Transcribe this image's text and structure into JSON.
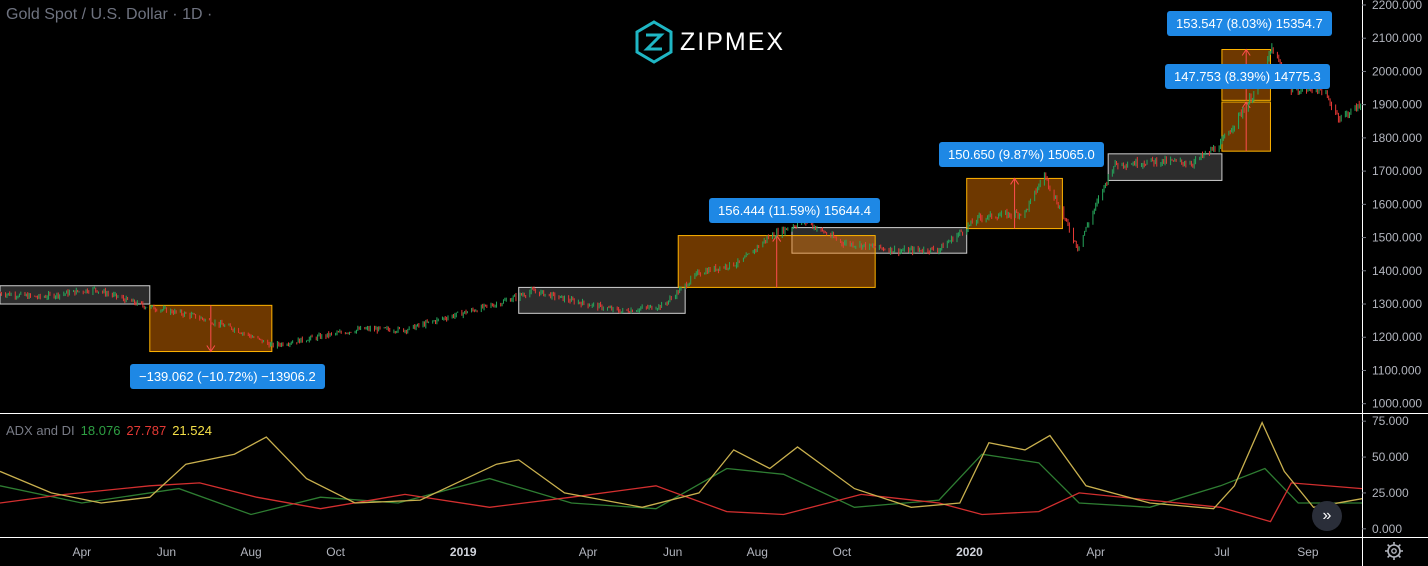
{
  "header": {
    "symbol": "Gold Spot / U.S. Dollar · 1D ·",
    "brand": "ZIPMEX"
  },
  "indicator": {
    "name": "ADX and DI",
    "plus_di": "18.076",
    "minus_di": "27.787",
    "adx": "21.524"
  },
  "callouts": [
    "−139.062 (−10.72%) −13906.2",
    "156.444 (11.59%) 15644.4",
    "150.650 (9.87%) 15065.0",
    "153.547 (8.03%) 15354.7",
    "147.753 (8.39%) 14775.3"
  ],
  "chart_data": {
    "type": "candlestick",
    "instrument": "Gold Spot / U.S. Dollar",
    "interval": "1D",
    "price_axis": {
      "ticks": [
        "1000.000",
        "1100.000",
        "1200.000",
        "1300.000",
        "1400.000",
        "1500.000",
        "1600.000",
        "1700.000",
        "1800.000",
        "1900.000",
        "2000.000",
        "2100.000",
        "2200.000"
      ],
      "range": [
        975,
        2215
      ]
    },
    "time_axis": {
      "ticks": [
        "Apr",
        "Jun",
        "Aug",
        "Oct",
        "2019",
        "Apr",
        "Jun",
        "Aug",
        "Oct",
        "2020",
        "Apr",
        "Jul",
        "Sep"
      ],
      "range": [
        "2018-02-01",
        "2020-10-10"
      ]
    },
    "price_path": [
      [
        "2018-02-01",
        1333
      ],
      [
        "2018-03-01",
        1320
      ],
      [
        "2018-04-10",
        1345
      ],
      [
        "2018-05-15",
        1295
      ],
      [
        "2018-06-20",
        1265
      ],
      [
        "2018-07-20",
        1225
      ],
      [
        "2018-08-16",
        1175
      ],
      [
        "2018-09-15",
        1198
      ],
      [
        "2018-10-20",
        1225
      ],
      [
        "2018-11-20",
        1222
      ],
      [
        "2018-12-20",
        1260
      ],
      [
        "2019-01-25",
        1300
      ],
      [
        "2019-02-20",
        1340
      ],
      [
        "2019-03-20",
        1310
      ],
      [
        "2019-04-25",
        1278
      ],
      [
        "2019-05-25",
        1295
      ],
      [
        "2019-06-20",
        1395
      ],
      [
        "2019-07-20",
        1425
      ],
      [
        "2019-08-10",
        1505
      ],
      [
        "2019-09-04",
        1550
      ],
      [
        "2019-10-01",
        1485
      ],
      [
        "2019-11-12",
        1460
      ],
      [
        "2019-12-10",
        1465
      ],
      [
        "2020-01-08",
        1560
      ],
      [
        "2020-02-10",
        1575
      ],
      [
        "2020-02-24",
        1690
      ],
      [
        "2020-03-19",
        1470
      ],
      [
        "2020-04-14",
        1720
      ],
      [
        "2020-05-15",
        1730
      ],
      [
        "2020-06-10",
        1725
      ],
      [
        "2020-06-30",
        1780
      ],
      [
        "2020-07-28",
        1960
      ],
      [
        "2020-08-06",
        2070
      ],
      [
        "2020-08-20",
        1945
      ],
      [
        "2020-09-10",
        1950
      ],
      [
        "2020-09-24",
        1860
      ],
      [
        "2020-10-10",
        1900
      ]
    ],
    "consolidation_ranges": [
      {
        "start": "2018-02-01",
        "end": "2018-05-20",
        "low": 1300,
        "high": 1355
      },
      {
        "start": "2019-02-10",
        "end": "2019-06-10",
        "low": 1272,
        "high": 1350
      },
      {
        "start": "2019-08-26",
        "end": "2019-12-30",
        "low": 1453,
        "high": 1530
      },
      {
        "start": "2020-04-10",
        "end": "2020-07-01",
        "low": 1672,
        "high": 1752
      }
    ],
    "measured_moves": [
      {
        "start": "2018-05-20",
        "end": "2018-08-16",
        "from": 1296,
        "to": 1157,
        "direction": "down",
        "label": "−139.062 (−10.72%) −13906.2"
      },
      {
        "start": "2019-06-05",
        "end": "2019-10-25",
        "from": 1350,
        "to": 1506,
        "direction": "up",
        "label": "156.444 (11.59%) 15644.4"
      },
      {
        "start": "2019-12-30",
        "end": "2020-03-08",
        "from": 1527,
        "to": 1678,
        "direction": "up",
        "label": "150.650 (9.87%) 15065.0"
      },
      {
        "start": "2020-07-01",
        "end": "2020-08-05",
        "from": 1760,
        "to": 1908,
        "direction": "up",
        "label": "147.753 (8.39%) 14775.3"
      },
      {
        "start": "2020-07-01",
        "end": "2020-08-05",
        "from": 1913,
        "to": 2066,
        "direction": "up",
        "label": "153.547 (8.03%) 15354.7"
      }
    ],
    "indicator_panel": {
      "name": "ADX and DI",
      "ticks": [
        "0.000",
        "25.000",
        "50.000",
        "75.000"
      ],
      "range": [
        -5,
        80
      ],
      "series": [
        {
          "name": "+DI",
          "last": 18.076,
          "color": "#2e7d32",
          "points": [
            [
              "2018-02-01",
              30
            ],
            [
              "2018-04-01",
              18
            ],
            [
              "2018-06-10",
              28
            ],
            [
              "2018-08-01",
              10
            ],
            [
              "2018-09-20",
              22
            ],
            [
              "2018-11-15",
              18
            ],
            [
              "2019-01-20",
              35
            ],
            [
              "2019-03-20",
              18
            ],
            [
              "2019-05-20",
              14
            ],
            [
              "2019-07-10",
              42
            ],
            [
              "2019-08-20",
              38
            ],
            [
              "2019-10-10",
              15
            ],
            [
              "2019-12-10",
              20
            ],
            [
              "2020-01-10",
              52
            ],
            [
              "2020-02-20",
              46
            ],
            [
              "2020-03-20",
              18
            ],
            [
              "2020-05-10",
              15
            ],
            [
              "2020-06-30",
              30
            ],
            [
              "2020-08-01",
              42
            ],
            [
              "2020-08-25",
              18
            ],
            [
              "2020-10-10",
              18
            ]
          ]
        },
        {
          "name": "−DI",
          "last": 27.787,
          "color": "#d32f2f",
          "points": [
            [
              "2018-02-01",
              18
            ],
            [
              "2018-03-20",
              24
            ],
            [
              "2018-05-20",
              30
            ],
            [
              "2018-06-25",
              32
            ],
            [
              "2018-08-05",
              22
            ],
            [
              "2018-09-20",
              14
            ],
            [
              "2018-11-20",
              24
            ],
            [
              "2019-01-20",
              15
            ],
            [
              "2019-03-20",
              22
            ],
            [
              "2019-05-20",
              30
            ],
            [
              "2019-07-10",
              12
            ],
            [
              "2019-08-20",
              10
            ],
            [
              "2019-10-15",
              24
            ],
            [
              "2019-12-10",
              18
            ],
            [
              "2020-01-10",
              10
            ],
            [
              "2020-02-20",
              12
            ],
            [
              "2020-03-20",
              25
            ],
            [
              "2020-05-10",
              20
            ],
            [
              "2020-06-30",
              15
            ],
            [
              "2020-08-05",
              5
            ],
            [
              "2020-08-20",
              32
            ],
            [
              "2020-10-10",
              28
            ]
          ]
        },
        {
          "name": "ADX",
          "last": 21.524,
          "color": "#c9b04e",
          "points": [
            [
              "2018-02-01",
              40
            ],
            [
              "2018-03-10",
              25
            ],
            [
              "2018-04-15",
              18
            ],
            [
              "2018-05-20",
              22
            ],
            [
              "2018-06-15",
              45
            ],
            [
              "2018-07-20",
              52
            ],
            [
              "2018-08-12",
              64
            ],
            [
              "2018-09-10",
              35
            ],
            [
              "2018-10-15",
              18
            ],
            [
              "2018-12-01",
              20
            ],
            [
              "2019-01-25",
              45
            ],
            [
              "2019-02-10",
              48
            ],
            [
              "2019-03-15",
              25
            ],
            [
              "2019-05-10",
              15
            ],
            [
              "2019-06-20",
              25
            ],
            [
              "2019-07-15",
              55
            ],
            [
              "2019-08-10",
              42
            ],
            [
              "2019-08-30",
              57
            ],
            [
              "2019-10-10",
              28
            ],
            [
              "2019-11-20",
              15
            ],
            [
              "2019-12-25",
              18
            ],
            [
              "2020-01-15",
              60
            ],
            [
              "2020-02-10",
              55
            ],
            [
              "2020-02-28",
              65
            ],
            [
              "2020-03-25",
              30
            ],
            [
              "2020-05-10",
              18
            ],
            [
              "2020-06-25",
              14
            ],
            [
              "2020-07-10",
              30
            ],
            [
              "2020-07-30",
              74
            ],
            [
              "2020-08-15",
              40
            ],
            [
              "2020-09-05",
              15
            ],
            [
              "2020-10-10",
              21
            ]
          ]
        }
      ]
    }
  }
}
